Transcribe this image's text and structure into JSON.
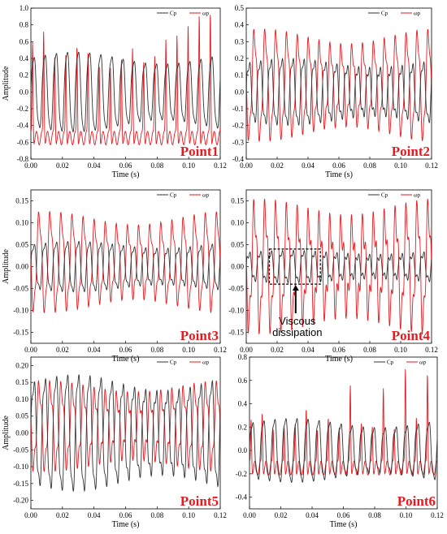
{
  "colors": {
    "cp": "#333333",
    "wp": "#e8191f",
    "axis": "#000000",
    "label": "#e8191f"
  },
  "chart_data": [
    {
      "type": "line",
      "label": "Point1",
      "xlabel": "Time (s)",
      "ylabel": "Amplitude",
      "xlim": [
        0,
        0.12
      ],
      "ylim": [
        -0.8,
        1.0
      ],
      "xticks": [
        "0.00",
        "0.02",
        "0.04",
        "0.06",
        "0.08",
        "0.10",
        "0.12"
      ],
      "yticks": [
        "-0.8",
        "-0.6",
        "-0.4",
        "-0.2",
        "0.0",
        "0.2",
        "0.4",
        "0.6",
        "0.8",
        "1.0"
      ],
      "legend": [
        "Cp",
        "ωp"
      ],
      "series": [
        {
          "name": "Cp",
          "wave": {
            "freq": 142,
            "center": 0.0,
            "amp": 0.42,
            "harm": 0.05
          }
        },
        {
          "name": "ωp",
          "wave": {
            "freq": 142,
            "center": -0.55,
            "amp": 0.08,
            "peaks": [
              0.62,
              0.75,
              0.45,
              0.48,
              0.58,
              0.52,
              0.35,
              0.33,
              0.42,
              0.55,
              0.38,
              0.45,
              0.65,
              0.7,
              0.82,
              0.95,
              0.98
            ]
          }
        }
      ]
    },
    {
      "type": "line",
      "label": "Point2",
      "xlabel": "Time (s)",
      "ylabel": "",
      "xlim": [
        0,
        0.12
      ],
      "ylim": [
        -0.4,
        0.5
      ],
      "xticks": [
        "0.00",
        "0.02",
        "0.04",
        "0.06",
        "0.08",
        "0.10",
        "0.12"
      ],
      "yticks": [
        "-0.4",
        "-0.3",
        "-0.2",
        "-0.1",
        "0.0",
        "0.1",
        "0.2",
        "0.3",
        "0.4",
        "0.5"
      ],
      "legend": [
        "Cp",
        "ωp"
      ],
      "series": [
        {
          "name": "Cp",
          "wave": {
            "freq": 142,
            "center": 0.0,
            "amp": 0.17,
            "harm": 0.04
          }
        },
        {
          "name": "ωp",
          "wave": {
            "freq": 142,
            "center": 0.04,
            "amp": 0.26,
            "harm": 0.06
          }
        }
      ]
    },
    {
      "type": "line",
      "label": "Point3",
      "xlabel": "Time (s)",
      "ylabel": "Amplitude",
      "xlim": [
        0,
        0.12
      ],
      "ylim": [
        -0.175,
        0.175
      ],
      "xticks": [
        "0.00",
        "0.02",
        "0.04",
        "0.06",
        "0.08",
        "0.10",
        "0.12"
      ],
      "yticks": [
        "-0.15",
        "-0.10",
        "-0.05",
        "0.00",
        "0.05",
        "0.10",
        "0.15"
      ],
      "legend": [
        "Cp",
        "ωp"
      ],
      "series": [
        {
          "name": "Cp",
          "wave": {
            "freq": 142,
            "center": 0.0,
            "amp": 0.05,
            "harm": 0.01
          }
        },
        {
          "name": "ωp",
          "wave": {
            "freq": 142,
            "center": 0.01,
            "amp": 0.09,
            "harm": 0.02
          }
        }
      ]
    },
    {
      "type": "line",
      "label": "Point4",
      "xlabel": "Time (s)",
      "ylabel": "",
      "xlim": [
        0,
        0.12
      ],
      "ylim": [
        -0.175,
        0.175
      ],
      "xticks": [
        "0.00",
        "0.02",
        "0.04",
        "0.06",
        "0.08",
        "0.10",
        "0.12"
      ],
      "yticks": [
        "-0.15",
        "-0.10",
        "-0.05",
        "0.00",
        "0.05",
        "0.10",
        "0.15"
      ],
      "legend": [
        "Cp",
        "ωp"
      ],
      "annotation": {
        "text_line1": "Viscous",
        "text_line2": "dissipation",
        "box_x": [
          0.015,
          0.048
        ],
        "box_y": [
          -0.04,
          0.04
        ],
        "arrow_x": 0.032
      },
      "series": [
        {
          "name": "Cp",
          "wave": {
            "freq": 142,
            "center": 0.0,
            "amp": 0.03,
            "harm": 0.01
          }
        },
        {
          "name": "ωp",
          "wave": {
            "freq": 142,
            "center": 0.0,
            "amp": 0.11,
            "harm": 0.04
          }
        }
      ]
    },
    {
      "type": "line",
      "label": "Point5",
      "xlabel": "Time (s)",
      "ylabel": "Amplitude",
      "xlim": [
        0,
        0.12
      ],
      "ylim": [
        -0.225,
        0.225
      ],
      "xticks": [
        "0.00",
        "0.02",
        "0.04",
        "0.06",
        "0.08",
        "0.10",
        "0.12"
      ],
      "yticks": [
        "-0.20",
        "-0.15",
        "-0.10",
        "-0.05",
        "0.00",
        "0.05",
        "0.10",
        "0.15",
        "0.20"
      ],
      "legend": [
        "Cp",
        "ωp"
      ],
      "series": [
        {
          "name": "Cp",
          "wave": {
            "freq": 142,
            "center": 0.0,
            "amp": 0.15,
            "harm": 0.03
          }
        },
        {
          "name": "ωp",
          "wave": {
            "freq": 142,
            "center": 0.02,
            "amp": 0.1,
            "harm": 0.03
          }
        }
      ]
    },
    {
      "type": "line",
      "label": "Point6",
      "xlabel": "Time (s)",
      "ylabel": "",
      "xlim": [
        0,
        0.12
      ],
      "ylim": [
        -0.5,
        0.8
      ],
      "xticks": [
        "0.00",
        "0.02",
        "0.04",
        "0.06",
        "0.08",
        "0.10",
        "0.12"
      ],
      "yticks": [
        "-0.4",
        "-0.2",
        "0.0",
        "0.2",
        "0.4",
        "0.6",
        "0.8"
      ],
      "legend": [
        "Cp",
        "ωp"
      ],
      "series": [
        {
          "name": "Cp",
          "wave": {
            "freq": 142,
            "center": 0.0,
            "amp": 0.24,
            "harm": 0.04
          }
        },
        {
          "name": "ωp",
          "wave": {
            "freq": 142,
            "center": -0.15,
            "amp": 0.06,
            "peaks": [
              0.28,
              0.33,
              0.2,
              0.22,
              0.25,
              0.38,
              0.2,
              0.3,
              0.22,
              0.58,
              0.25,
              0.22,
              0.55,
              0.2,
              0.72,
              0.3,
              0.68
            ]
          }
        }
      ]
    }
  ]
}
